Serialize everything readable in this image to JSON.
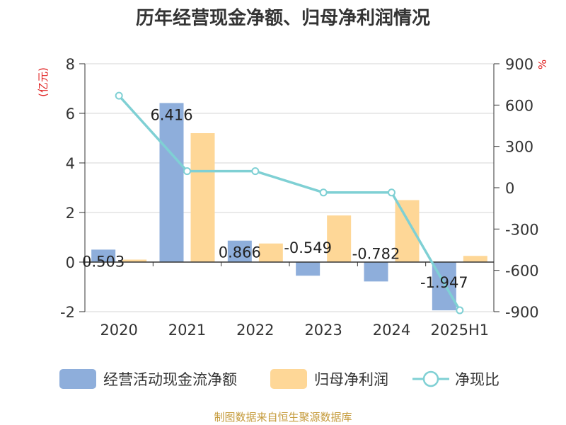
{
  "chart_data": {
    "type": "bar",
    "title": "历年经营现金净额、归母净利润情况",
    "source": "制图数据来自恒生聚源数据库",
    "y_left_unit": "(亿元)",
    "y_right_unit": "%",
    "categories": [
      "2020",
      "2021",
      "2022",
      "2023",
      "2024",
      "2025H1"
    ],
    "y_left_range": [
      -2,
      8
    ],
    "y_left_ticks": [
      "-2",
      "0",
      "2",
      "4",
      "6",
      "8"
    ],
    "y_right_range": [
      -900,
      900
    ],
    "y_right_ticks": [
      "-900",
      "-600",
      "-300",
      "0",
      "300",
      "600",
      "900"
    ],
    "grid": true,
    "legend_position": "bottom",
    "series": [
      {
        "name": "经营活动现金流净额",
        "kind": "bar",
        "axis": "left",
        "color": "#8eaedb",
        "values": [
          0.503,
          6.416,
          0.866,
          -0.549,
          -0.782,
          -1.947
        ],
        "labels": [
          "0.503",
          "6.416",
          "0.866",
          "-0.549",
          "-0.782",
          "-1.947"
        ]
      },
      {
        "name": "归母净利润",
        "kind": "bar",
        "axis": "left",
        "color": "#fed797",
        "values": [
          0.1,
          5.2,
          0.75,
          1.88,
          2.5,
          0.25
        ]
      },
      {
        "name": "净现比",
        "kind": "line",
        "axis": "right",
        "color": "#7fd0d4",
        "values": [
          668,
          120,
          120,
          -35,
          -35,
          -890
        ]
      }
    ]
  }
}
